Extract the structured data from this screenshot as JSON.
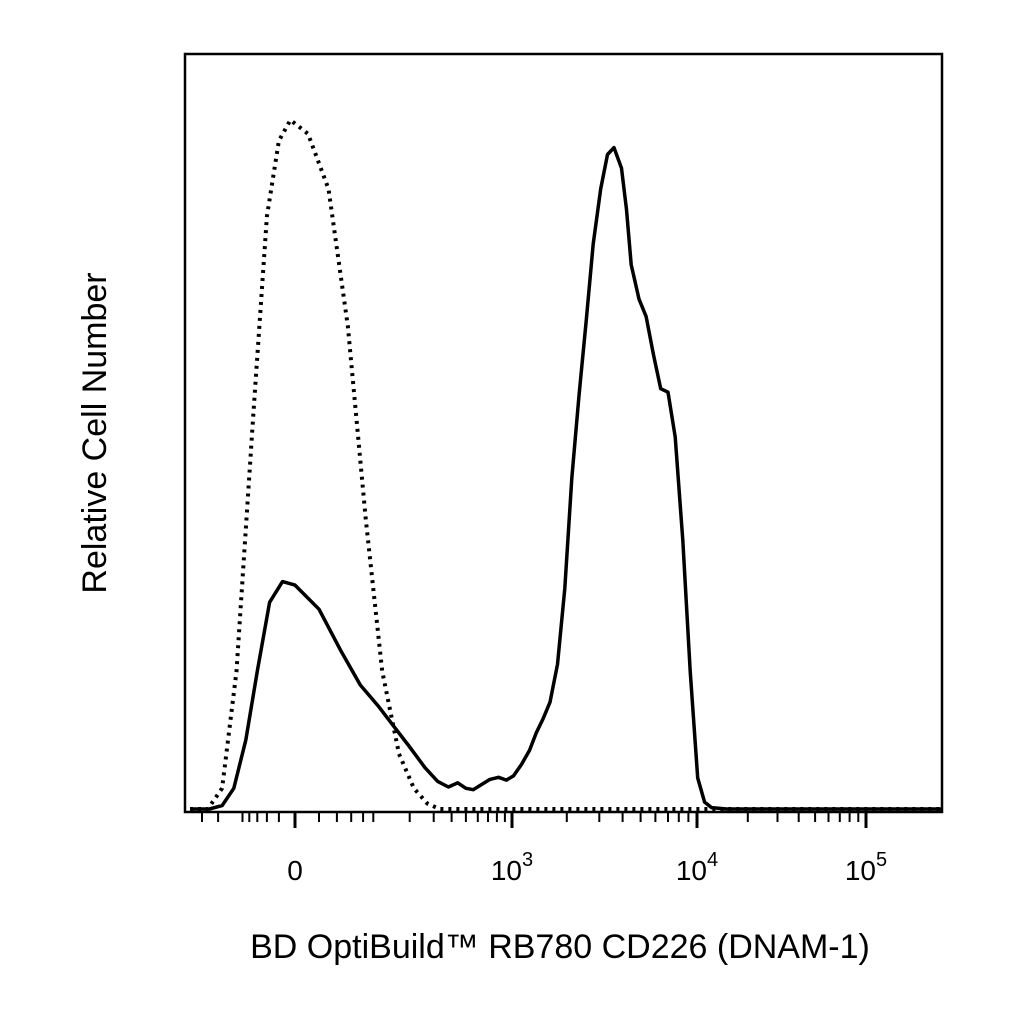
{
  "chart_data": {
    "type": "line",
    "title": "",
    "xlabel": "BD OptiBuild™ RB780 CD226 (DNAM-1)",
    "ylabel": "Relative Cell Number",
    "x_scale": "biexponential",
    "xlim": [
      -400,
      150000
    ],
    "ylim": [
      0,
      100
    ],
    "grid": false,
    "legend": "none",
    "x_ticks": [
      {
        "base": "0",
        "exp": "",
        "value": 0
      },
      {
        "base": "10",
        "exp": "3",
        "value": 1000
      },
      {
        "base": "10",
        "exp": "4",
        "value": 10000
      },
      {
        "base": "10",
        "exp": "5",
        "value": 100000
      }
    ],
    "series": [
      {
        "style": "solid",
        "color": "#000000",
        "points": [
          [
            -400,
            0
          ],
          [
            -250,
            0
          ],
          [
            -180,
            0.5
          ],
          [
            -130,
            3
          ],
          [
            -90,
            10
          ],
          [
            -60,
            20
          ],
          [
            -35,
            30
          ],
          [
            -15,
            33
          ],
          [
            0,
            32.5
          ],
          [
            20,
            29
          ],
          [
            45,
            23
          ],
          [
            75,
            18
          ],
          [
            110,
            15
          ],
          [
            150,
            12
          ],
          [
            200,
            9
          ],
          [
            260,
            6
          ],
          [
            320,
            4
          ],
          [
            380,
            3.2
          ],
          [
            440,
            3.8
          ],
          [
            500,
            3
          ],
          [
            560,
            2.8
          ],
          [
            630,
            3.5
          ],
          [
            720,
            4.3
          ],
          [
            820,
            4.6
          ],
          [
            920,
            4.2
          ],
          [
            1020,
            4.8
          ],
          [
            1130,
            6.5
          ],
          [
            1250,
            8.5
          ],
          [
            1360,
            11
          ],
          [
            1480,
            13
          ],
          [
            1620,
            15.5
          ],
          [
            1780,
            21
          ],
          [
            1950,
            32
          ],
          [
            2130,
            48
          ],
          [
            2330,
            60
          ],
          [
            2550,
            71
          ],
          [
            2780,
            82
          ],
          [
            3050,
            90
          ],
          [
            3320,
            95
          ],
          [
            3600,
            96
          ],
          [
            3950,
            93
          ],
          [
            4200,
            87
          ],
          [
            4450,
            79
          ],
          [
            4900,
            74
          ],
          [
            5350,
            71.5
          ],
          [
            5850,
            66
          ],
          [
            6400,
            61
          ],
          [
            7000,
            60.5
          ],
          [
            7650,
            54
          ],
          [
            8400,
            39
          ],
          [
            9200,
            20
          ],
          [
            10100,
            4.5
          ],
          [
            11100,
            1
          ],
          [
            12200,
            0.2
          ],
          [
            15000,
            0
          ],
          [
            30000,
            0
          ],
          [
            150000,
            0
          ]
        ]
      },
      {
        "style": "dotted",
        "color": "#000000",
        "points": [
          [
            -400,
            0
          ],
          [
            -260,
            0
          ],
          [
            -180,
            3
          ],
          [
            -120,
            20
          ],
          [
            -70,
            57
          ],
          [
            -40,
            86
          ],
          [
            -20,
            97
          ],
          [
            -5,
            100
          ],
          [
            10,
            98
          ],
          [
            30,
            90
          ],
          [
            55,
            70
          ],
          [
            85,
            42
          ],
          [
            120,
            20
          ],
          [
            165,
            8
          ],
          [
            215,
            3
          ],
          [
            270,
            0.8
          ],
          [
            330,
            0
          ],
          [
            1000,
            0
          ],
          [
            150000,
            0
          ]
        ]
      }
    ]
  }
}
